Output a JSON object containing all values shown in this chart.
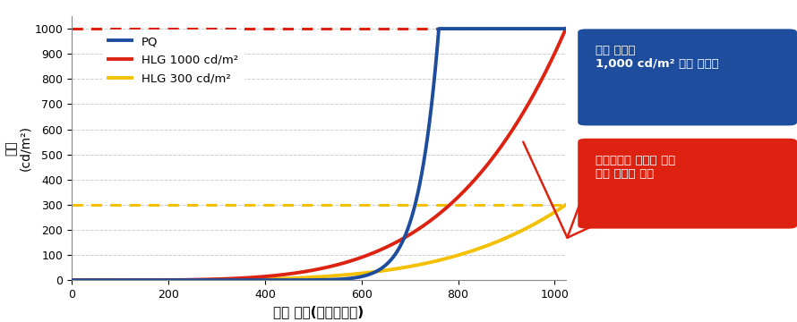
{
  "xlabel": "입력 계조(그라데이션)",
  "ylabel": "밝기\n(cd/m²)",
  "xlim": [
    0,
    1023
  ],
  "ylim": [
    0,
    1050
  ],
  "xticks": [
    0,
    200,
    400,
    600,
    800,
    1000
  ],
  "yticks": [
    0,
    100,
    200,
    300,
    400,
    500,
    600,
    700,
    800,
    900,
    1000
  ],
  "pq_color": "#1e4d9e",
  "hlg1000_color": "#dd2211",
  "hlg300_color": "#f5c000",
  "dashed_1000_color": "#dd2211",
  "dashed_300_color": "#f5c000",
  "legend_labels": [
    "PQ",
    "HLG 1000 cd/m²",
    "HLG 300 cd/m²"
  ],
  "annotation1_text": "최대 밝기가\n1,000 cd/m² 으로 고정됨",
  "annotation2_text": "디스플레이 장치에 따라\n최대 밝기가 변화",
  "annotation1_box_color": "#1e4d9e",
  "annotation2_box_color": "#dd2211",
  "grid_color": "#c8c8c8",
  "bg_color": "#ffffff",
  "pq_exponent": 18,
  "pq_knee": 760,
  "hlg_exponent": 4.5
}
